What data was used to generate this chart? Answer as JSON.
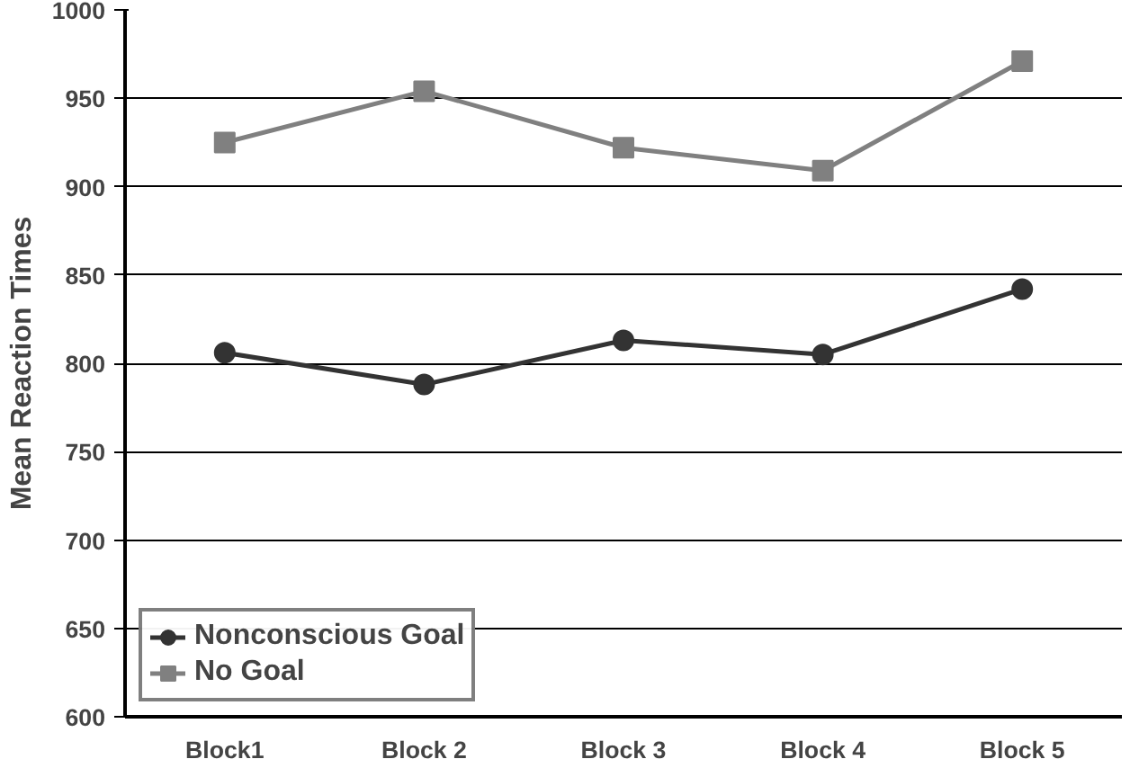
{
  "chart_data": {
    "type": "line",
    "ylabel": "Mean Reaction Times",
    "categories": [
      "Block1",
      "Block 2",
      "Block 3",
      "Block 4",
      "Block 5"
    ],
    "series": [
      {
        "name": "Nonconscious Goal",
        "color": "#333333",
        "marker": "circle",
        "values": [
          806,
          788,
          813,
          805,
          842
        ]
      },
      {
        "name": "No Goal",
        "color": "#808080",
        "marker": "square",
        "values": [
          925,
          954,
          922,
          909,
          971
        ]
      }
    ],
    "ylim": [
      600,
      1000
    ],
    "yticks": [
      600,
      650,
      700,
      750,
      800,
      850,
      900,
      950,
      1000
    ],
    "grid": "y",
    "legend": "bottom left",
    "line_style": "solid"
  }
}
